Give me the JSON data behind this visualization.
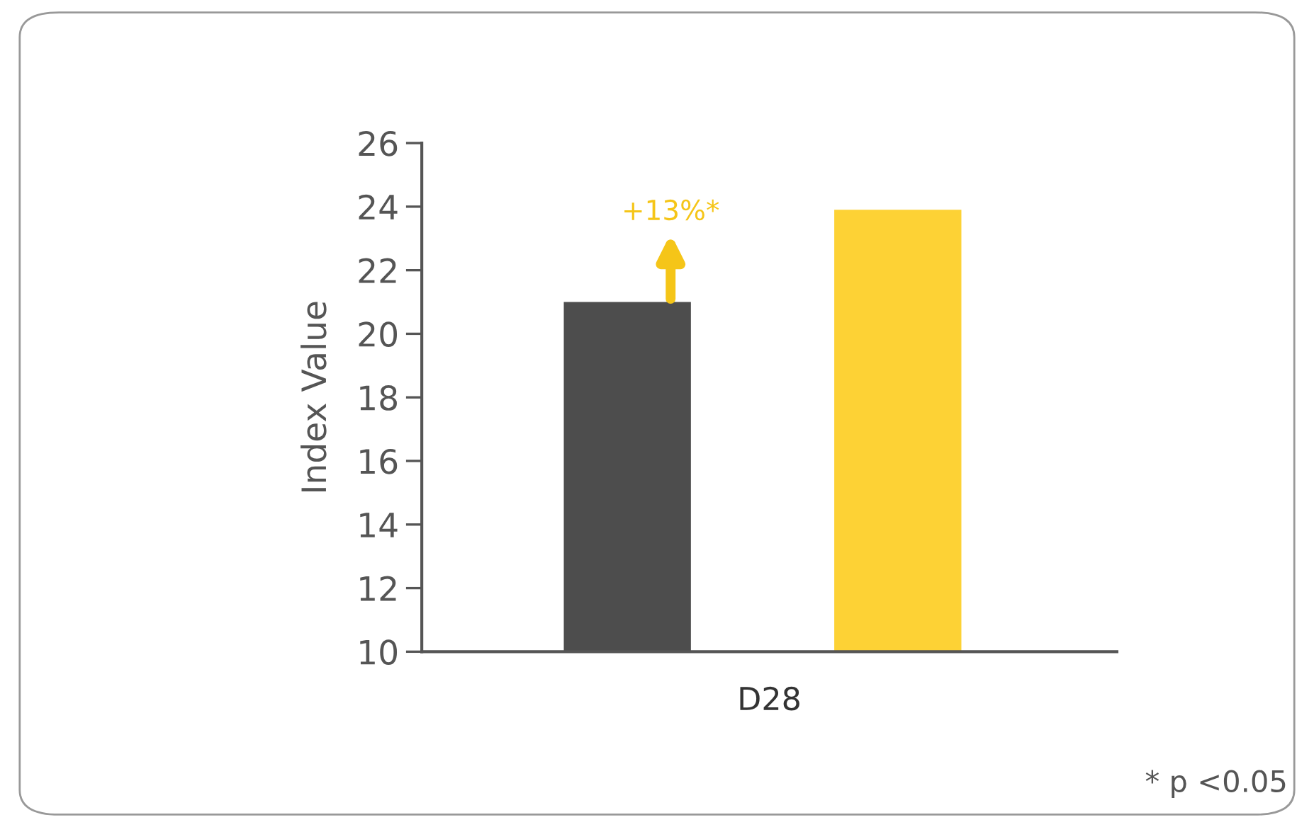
{
  "chart_data": {
    "type": "bar",
    "ylabel": "Index Value",
    "xlabel": "D28",
    "categories": [
      null,
      null
    ],
    "values": [
      21.0,
      23.9
    ],
    "colors": [
      "#4d4d4d",
      "#fdd235"
    ],
    "ylim": [
      10,
      26
    ],
    "yticks": [
      10,
      12,
      14,
      16,
      18,
      20,
      22,
      24,
      26
    ],
    "grid": false,
    "legend": false,
    "annotations": [
      "+13%*",
      "* p <0.05"
    ]
  }
}
